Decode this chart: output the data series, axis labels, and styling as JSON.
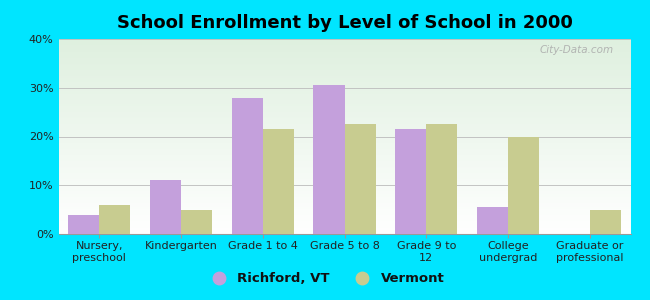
{
  "title": "School Enrollment by Level of School in 2000",
  "categories": [
    "Nursery,\npreschool",
    "Kindergarten",
    "Grade 1 to 4",
    "Grade 5 to 8",
    "Grade 9 to\n12",
    "College\nundergrad",
    "Graduate or\nprofessional"
  ],
  "richford_values": [
    4.0,
    11.0,
    28.0,
    30.5,
    21.5,
    5.5,
    0.0
  ],
  "vermont_values": [
    6.0,
    5.0,
    21.5,
    22.5,
    22.5,
    20.0,
    5.0
  ],
  "richford_color": "#c4a0dc",
  "vermont_color": "#c8cc90",
  "background_color": "#00e5ff",
  "ylim": [
    0,
    40
  ],
  "yticks": [
    0,
    10,
    20,
    30,
    40
  ],
  "ytick_labels": [
    "0%",
    "10%",
    "20%",
    "30%",
    "40%"
  ],
  "legend_labels": [
    "Richford, VT",
    "Vermont"
  ],
  "bar_width": 0.38,
  "watermark": "City-Data.com",
  "title_fontsize": 13,
  "tick_fontsize": 8,
  "legend_fontsize": 9.5
}
